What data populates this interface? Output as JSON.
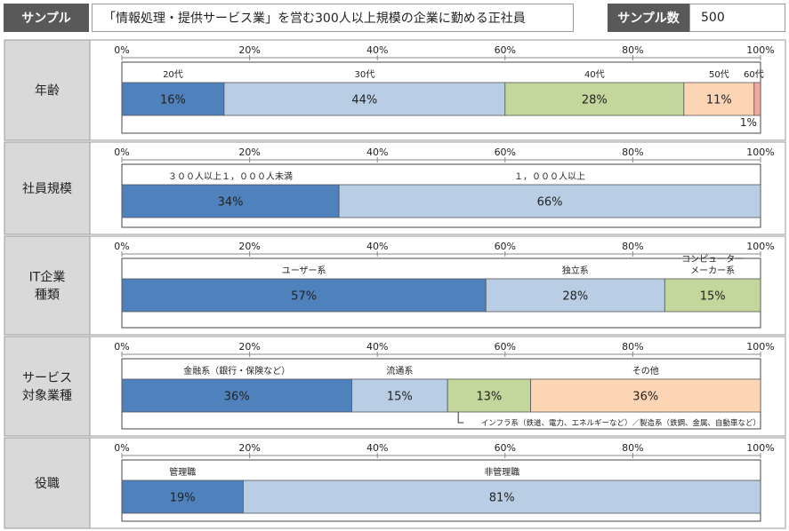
{
  "header": {
    "sample_label": "サンプル",
    "sample_description": "「情報処理・提供サービス業」を営む300人以上規模の企業に勤める正社員",
    "sample_count_label": "サンプル数",
    "sample_count_value": "500"
  },
  "chart_data": {
    "type": "bar",
    "stacked": true,
    "orientation": "horizontal",
    "xlim": [
      0,
      100
    ],
    "axis_ticks": [
      "0%",
      "20%",
      "40%",
      "60%",
      "80%",
      "100%"
    ],
    "colors": [
      "#4f81bd",
      "#b9cde5",
      "#c3d69b",
      "#fcd5b5",
      "#f2a7a0"
    ],
    "rows": [
      {
        "name": "年齢",
        "segments": [
          {
            "label": "20代",
            "value": 16,
            "value_label": "16%"
          },
          {
            "label": "30代",
            "value": 44,
            "value_label": "44%"
          },
          {
            "label": "40代",
            "value": 28,
            "value_label": "28%"
          },
          {
            "label": "50代",
            "value": 11,
            "value_label": "11%"
          },
          {
            "label": "60代",
            "value": 1,
            "value_label": "1%"
          }
        ]
      },
      {
        "name": "社員規模",
        "segments": [
          {
            "label": "３００人以上１，０００人未満",
            "value": 34,
            "value_label": "34%"
          },
          {
            "label": "１，０００人以上",
            "value": 66,
            "value_label": "66%"
          }
        ]
      },
      {
        "name": "IT企業\n種類",
        "segments": [
          {
            "label": "ユーザー系",
            "value": 57,
            "value_label": "57%"
          },
          {
            "label": "独立系",
            "value": 28,
            "value_label": "28%"
          },
          {
            "label": "コンピューター\nメーカー系",
            "value": 15,
            "value_label": "15%"
          }
        ]
      },
      {
        "name": "サービス\n対象業種",
        "segments": [
          {
            "label": "金融系（銀行・保険など）",
            "value": 36,
            "value_label": "36%"
          },
          {
            "label": "流通系",
            "value": 15,
            "value_label": "15%"
          },
          {
            "label": "",
            "value": 13,
            "value_label": "13%"
          },
          {
            "label": "その他",
            "value": 36,
            "value_label": "36%"
          }
        ],
        "annotation": "インフラ系（鉄道、電力、エネルギーなど）／製造系（鉄鋼、金属、自動車など）"
      },
      {
        "name": "役職",
        "segments": [
          {
            "label": "管理職",
            "value": 19,
            "value_label": "19%"
          },
          {
            "label": "非管理職",
            "value": 81,
            "value_label": "81%"
          }
        ]
      }
    ]
  }
}
